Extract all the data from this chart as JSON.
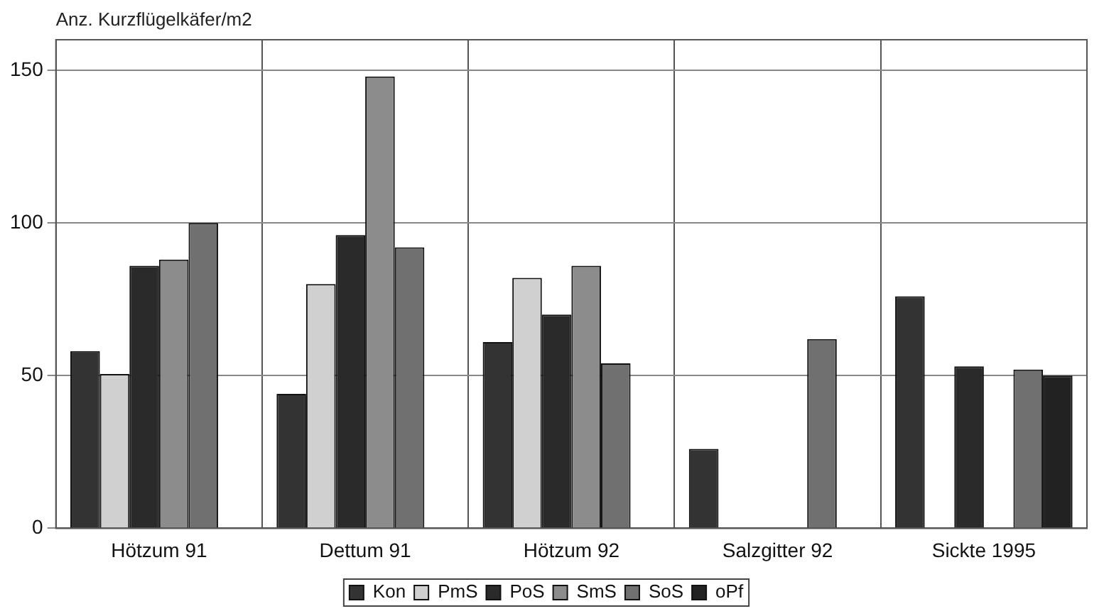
{
  "chart_data": {
    "type": "bar",
    "ylabel": "Anz. Kurzflügelkäfer/m2",
    "categories": [
      "Hötzum 91",
      "Dettum 91",
      "Hötzum 92",
      "Salzgitter 92",
      "Sickte 1995"
    ],
    "series": [
      {
        "name": "Kon",
        "color": "#333333",
        "values": [
          58,
          44,
          61,
          26,
          76
        ]
      },
      {
        "name": "PmS",
        "color": "#d0d0d0",
        "values": [
          50.5,
          80,
          82,
          null,
          null
        ]
      },
      {
        "name": "PoS",
        "color": "#2a2a2a",
        "values": [
          86,
          96,
          70,
          null,
          53
        ]
      },
      {
        "name": "SmS",
        "color": "#8c8c8c",
        "values": [
          88,
          148,
          86,
          null,
          null
        ]
      },
      {
        "name": "SoS",
        "color": "#707070",
        "values": [
          100,
          92,
          54,
          62,
          52
        ]
      },
      {
        "name": "oPf",
        "color": "#222222",
        "values": [
          null,
          null,
          null,
          null,
          50
        ]
      }
    ],
    "ylim": [
      0,
      160
    ],
    "yticks": [
      0,
      50,
      100,
      150
    ],
    "grid": true,
    "legend": "bottom"
  }
}
